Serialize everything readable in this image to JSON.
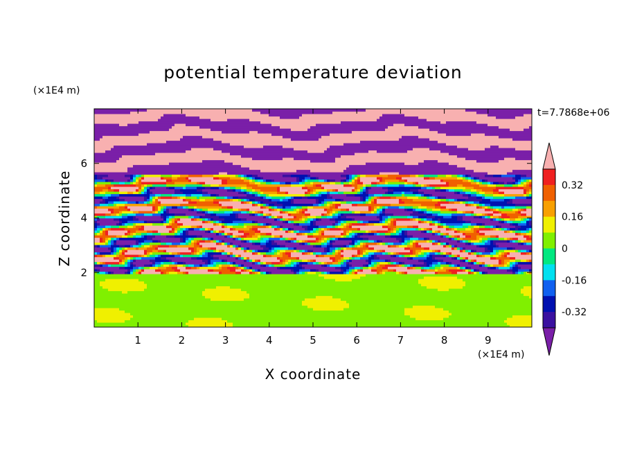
{
  "chart_data": {
    "type": "heatmap",
    "title": "potential temperature deviation",
    "xlabel": "X coordinate",
    "ylabel": "Z coordinate",
    "x_unit": "(×1E4 m)",
    "y_unit": "(×1E4 m)",
    "time_label": "t=7.7868e+06",
    "xlim": [
      0,
      10
    ],
    "ylim": [
      0,
      8
    ],
    "x_ticks": [
      1,
      2,
      3,
      4,
      5,
      6,
      7,
      8,
      9
    ],
    "y_ticks": [
      2,
      4,
      6
    ],
    "x_tick_labels": [
      "1",
      "2",
      "3",
      "4",
      "5",
      "6",
      "7",
      "8",
      "9"
    ],
    "y_tick_labels": [
      "2",
      "4",
      "6"
    ],
    "colorbar": {
      "levels": [
        -0.4,
        -0.32,
        -0.24,
        -0.16,
        -0.08,
        0,
        0.08,
        0.16,
        0.24,
        0.32,
        0.4
      ],
      "tick_values": [
        0.32,
        0.16,
        0,
        -0.16,
        -0.32
      ],
      "tick_labels": [
        "0.32",
        "0.16",
        "0",
        "-0.16",
        "-0.32"
      ],
      "colors": [
        "#7a1fa8",
        "#3a10a0",
        "#0010b0",
        "#1060f0",
        "#00e0f0",
        "#00e880",
        "#80f000",
        "#f0f000",
        "#f8a000",
        "#f06000",
        "#f02020",
        "#f8b0b0"
      ]
    },
    "regions": [
      {
        "z_range": [
          0,
          2
        ],
        "description_levels": [
          0,
          0.08
        ],
        "dominant": "green"
      },
      {
        "z_range": [
          2,
          5.6
        ],
        "description_levels": [
          -0.4,
          0.4
        ],
        "dominant": "mixed"
      },
      {
        "z_range": [
          5.6,
          8
        ],
        "description_levels": [
          -0.4,
          0.4
        ],
        "dominant": "pink/purple"
      }
    ]
  }
}
